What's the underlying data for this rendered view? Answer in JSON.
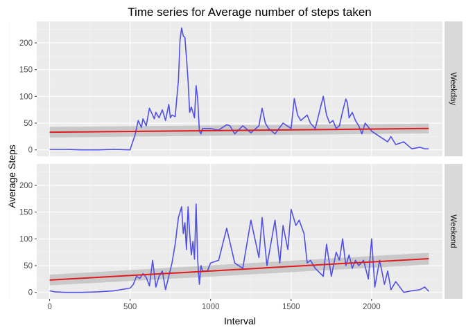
{
  "chart_data": {
    "type": "line",
    "title": "Time series for Average number of steps taken",
    "xlabel": "Interval",
    "ylabel": "Average Steps",
    "xlim": [
      -80,
      2440
    ],
    "ylim": [
      -12,
      240
    ],
    "x_ticks": [
      0,
      500,
      1000,
      1500,
      2000
    ],
    "y_ticks": [
      0,
      50,
      100,
      150,
      200
    ],
    "grid": true,
    "colors": {
      "series": "#4f4fe6",
      "trend": "#e31a1c",
      "band": "#bdbdbd",
      "panel": "#ebebeb",
      "strip": "#d9d9d9"
    },
    "panels": [
      {
        "label": "Weekday",
        "series": {
          "x": [
            0,
            100,
            200,
            300,
            400,
            500,
            510,
            530,
            550,
            570,
            580,
            600,
            620,
            640,
            650,
            660,
            680,
            700,
            720,
            740,
            750,
            760,
            780,
            800,
            810,
            820,
            830,
            840,
            850,
            860,
            870,
            880,
            900,
            910,
            920,
            930,
            940,
            950,
            1000,
            1050,
            1100,
            1120,
            1150,
            1200,
            1220,
            1250,
            1300,
            1320,
            1340,
            1360,
            1400,
            1450,
            1500,
            1520,
            1540,
            1560,
            1600,
            1620,
            1650,
            1700,
            1720,
            1740,
            1760,
            1780,
            1800,
            1820,
            1840,
            1850,
            1860,
            1880,
            1900,
            1920,
            1940,
            1960,
            2000,
            2050,
            2100,
            2120,
            2150,
            2200,
            2250,
            2300,
            2330,
            2355
          ],
          "y": [
            1,
            1,
            0,
            0,
            1,
            0,
            10,
            27,
            55,
            42,
            58,
            45,
            78,
            65,
            58,
            70,
            60,
            75,
            55,
            85,
            60,
            65,
            62,
            130,
            205,
            228,
            213,
            210,
            172,
            130,
            70,
            80,
            60,
            120,
            95,
            35,
            30,
            40,
            40,
            37,
            47,
            45,
            30,
            45,
            40,
            32,
            45,
            78,
            50,
            40,
            30,
            50,
            40,
            96,
            65,
            55,
            65,
            50,
            40,
            100,
            65,
            50,
            55,
            40,
            45,
            72,
            95,
            88,
            60,
            70,
            55,
            45,
            30,
            50,
            35,
            25,
            15,
            25,
            10,
            15,
            2,
            5,
            2,
            2
          ]
        },
        "trend": {
          "x": [
            0,
            2355
          ],
          "y": [
            33,
            40
          ],
          "band_halfwidth": [
            10,
            9
          ]
        }
      },
      {
        "label": "Weekend",
        "series": {
          "x": [
            0,
            30,
            100,
            200,
            300,
            400,
            500,
            520,
            540,
            560,
            580,
            600,
            620,
            640,
            660,
            680,
            700,
            720,
            740,
            760,
            780,
            800,
            820,
            830,
            840,
            850,
            860,
            870,
            880,
            890,
            900,
            910,
            920,
            930,
            940,
            950,
            980,
            1000,
            1050,
            1100,
            1150,
            1200,
            1250,
            1300,
            1320,
            1350,
            1400,
            1430,
            1450,
            1480,
            1500,
            1530,
            1550,
            1580,
            1600,
            1620,
            1650,
            1700,
            1720,
            1750,
            1780,
            1800,
            1820,
            1840,
            1860,
            1880,
            1900,
            1920,
            1950,
            1980,
            2000,
            2020,
            2050,
            2080,
            2100,
            2120,
            2150,
            2200,
            2250,
            2300,
            2330,
            2355
          ],
          "y": [
            3,
            1,
            0,
            0,
            1,
            3,
            8,
            15,
            30,
            26,
            35,
            28,
            12,
            60,
            10,
            30,
            40,
            5,
            30,
            55,
            90,
            140,
            160,
            110,
            130,
            80,
            160,
            110,
            70,
            95,
            62,
            165,
            60,
            15,
            50,
            40,
            40,
            55,
            60,
            120,
            55,
            45,
            135,
            65,
            140,
            50,
            135,
            55,
            125,
            80,
            155,
            125,
            135,
            110,
            55,
            60,
            45,
            30,
            90,
            30,
            75,
            60,
            100,
            50,
            70,
            45,
            60,
            50,
            60,
            25,
            100,
            10,
            60,
            15,
            40,
            5,
            20,
            0,
            3,
            5,
            10,
            2
          ]
        },
        "trend": {
          "x": [
            0,
            2355
          ],
          "y": [
            23,
            63
          ],
          "band_halfwidth": [
            10,
            11
          ]
        }
      }
    ]
  }
}
